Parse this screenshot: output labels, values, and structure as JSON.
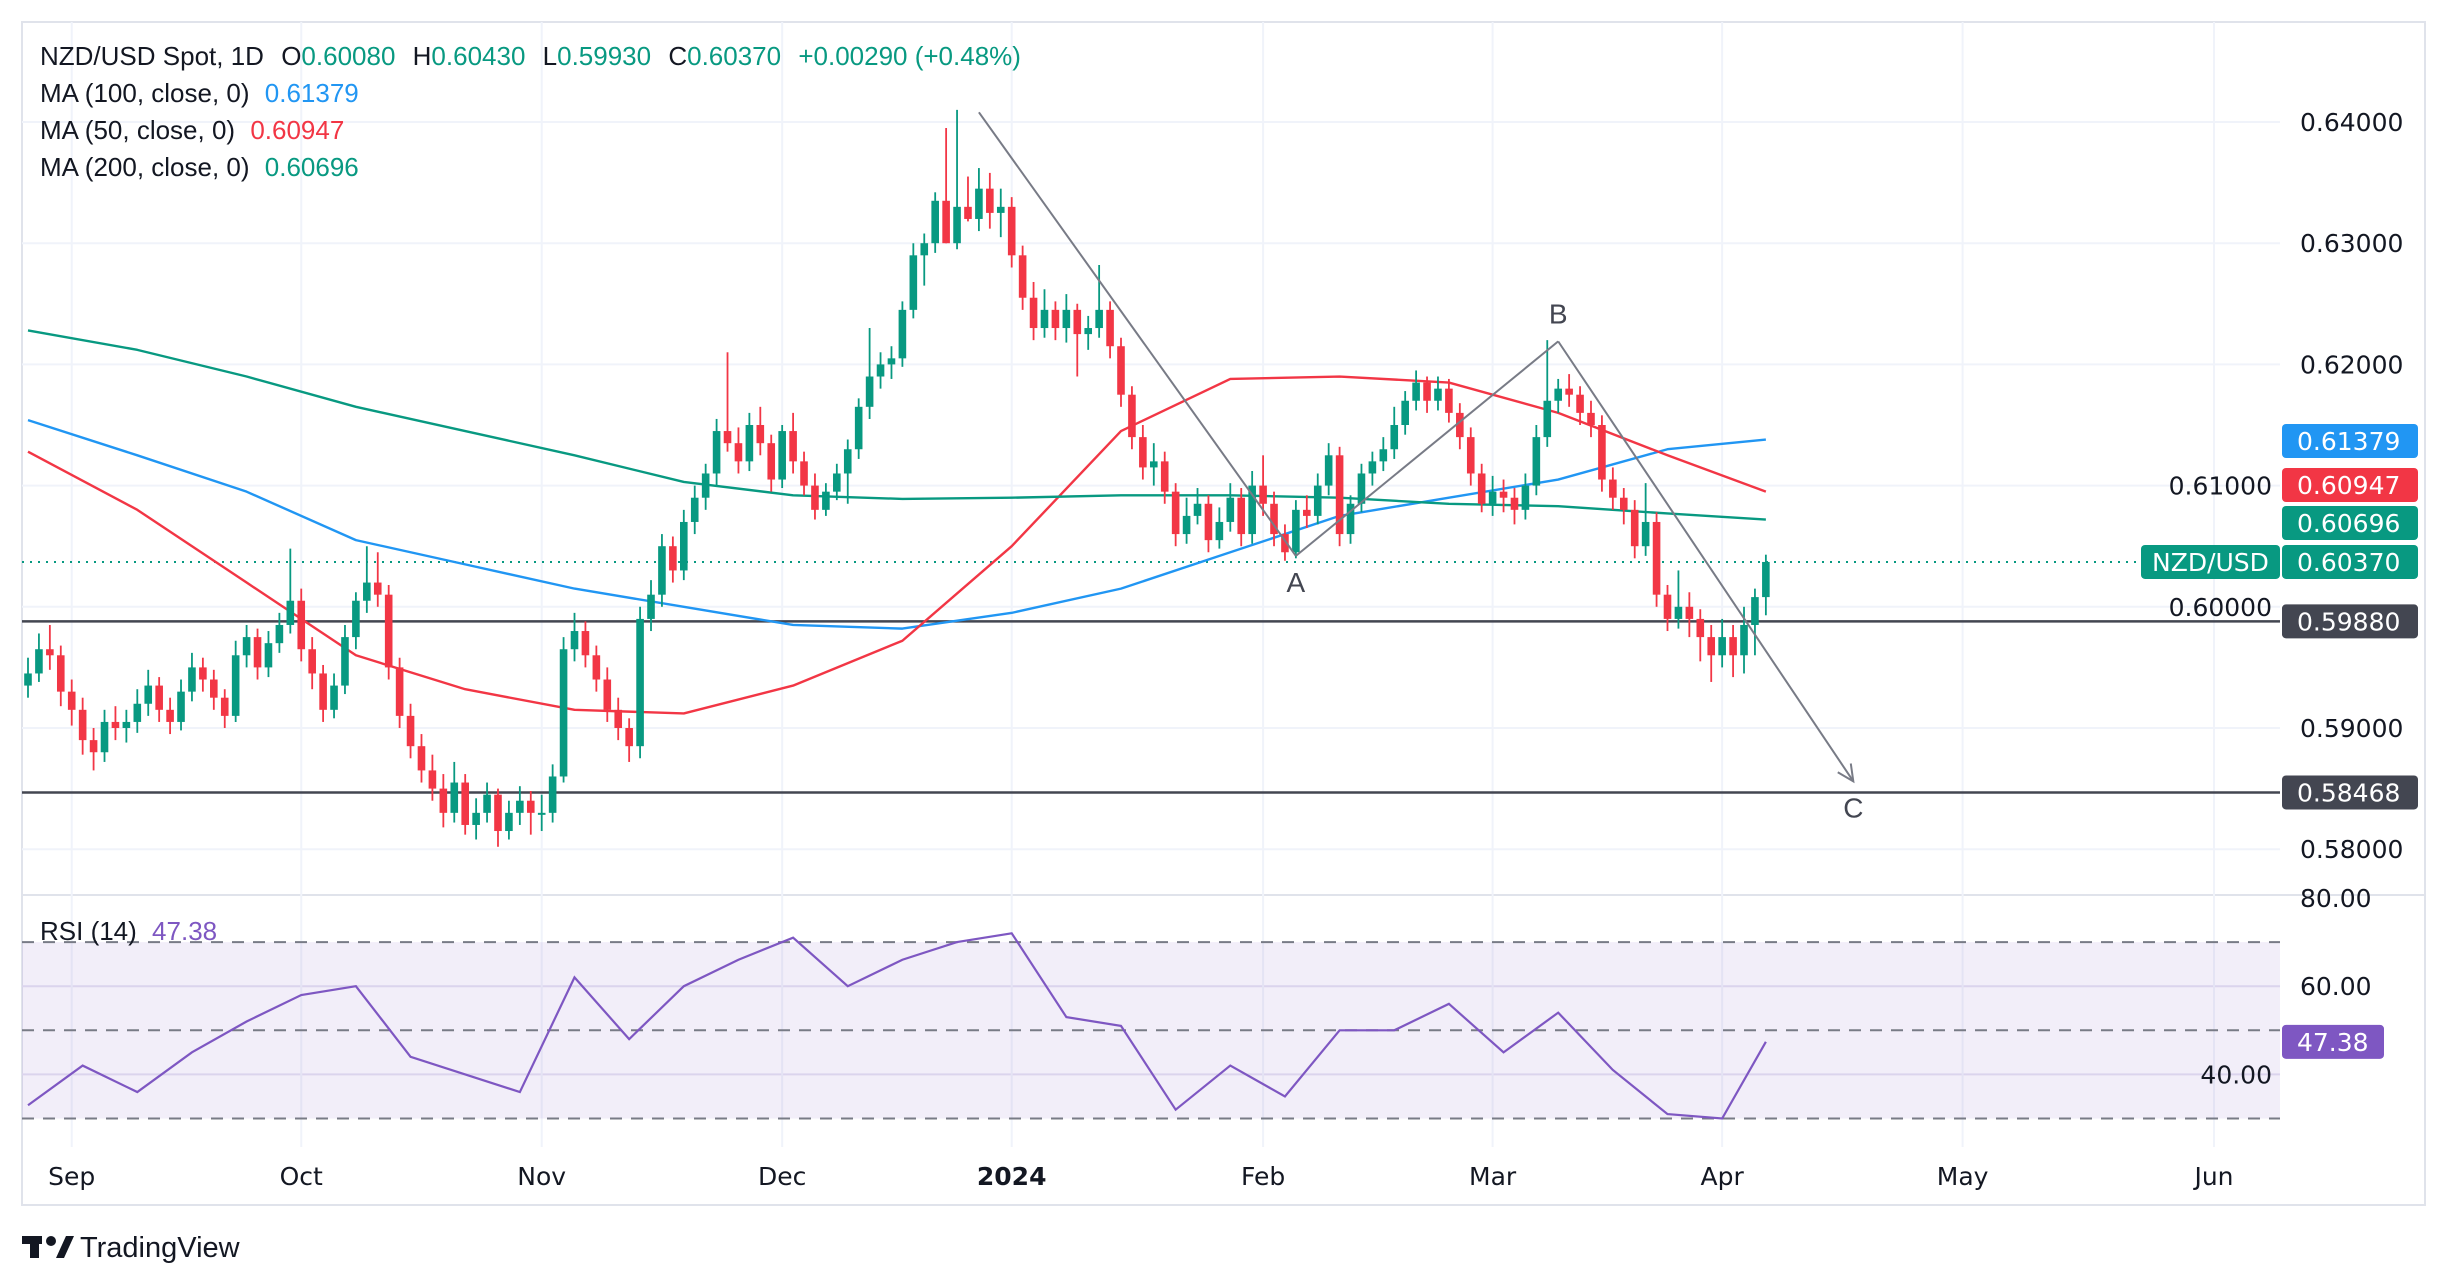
{
  "header": {
    "symbol": "NZD/USD Spot, 1D",
    "o_label": "O",
    "o": "0.60080",
    "h_label": "H",
    "h": "0.60430",
    "l_label": "L",
    "l": "0.59930",
    "c_label": "C",
    "c": "0.60370",
    "change": "+0.00290 (+0.48%)"
  },
  "indicators": [
    {
      "label": "MA (100, close, 0)",
      "value": "0.61379",
      "color": "#2196f3"
    },
    {
      "label": "MA (50, close, 0)",
      "value": "0.60947",
      "color": "#f23645"
    },
    {
      "label": "MA (200, close, 0)",
      "value": "0.60696",
      "color": "#089981"
    }
  ],
  "rsi_legend": {
    "label": "RSI (14)",
    "value": "47.38",
    "color": "#7e57c2"
  },
  "price_tags": {
    "symbol": "NZD/USD",
    "ma100": "0.61379",
    "ma50": "0.60947",
    "ma200": "0.60696",
    "last": "0.60370",
    "level_1": "0.59880",
    "level_2": "0.58468",
    "rsi": "47.38"
  },
  "price_axis": {
    "ticks": [
      "0.64000",
      "0.63000",
      "0.62000",
      "0.61000",
      "0.60000",
      "0.59000",
      "0.58000"
    ]
  },
  "rsi_axis": {
    "ticks": [
      "80.00",
      "60.00",
      "40.00"
    ]
  },
  "time_axis": {
    "ticks": [
      {
        "label": "Sep",
        "date": "2023-09-01",
        "bold": false
      },
      {
        "label": "Oct",
        "date": "2023-10-02",
        "bold": false
      },
      {
        "label": "Nov",
        "date": "2023-11-01",
        "bold": false
      },
      {
        "label": "Dec",
        "date": "2023-12-01",
        "bold": false
      },
      {
        "label": "2024",
        "date": "2024-01-01",
        "bold": true
      },
      {
        "label": "Feb",
        "date": "2024-02-01",
        "bold": false
      },
      {
        "label": "Mar",
        "date": "2024-03-01",
        "bold": false
      },
      {
        "label": "Apr",
        "date": "2024-04-01",
        "bold": false
      },
      {
        "label": "May",
        "date": "2024-05-01",
        "bold": false
      },
      {
        "label": "Jun",
        "date": "2024-06-03",
        "bold": false
      }
    ]
  },
  "brand": "TradingView",
  "colors": {
    "up": "#089981",
    "down": "#f23645",
    "ma100": "#2196f3",
    "ma50": "#f23645",
    "ma200": "#089981",
    "rsi": "#7e57c2",
    "level": "#434651"
  },
  "chart_data": {
    "type": "candlestick",
    "symbol": "NZD/USD Spot",
    "interval": "1D",
    "price_range": [
      0.577,
      0.644
    ],
    "rsi_range": [
      20,
      80
    ],
    "rsi_bands": [
      70,
      50,
      30
    ],
    "grid": true,
    "candles_ohlc": [
      [
        0.5935,
        0.5958,
        0.5925,
        0.5945
      ],
      [
        0.5945,
        0.5978,
        0.5938,
        0.5965
      ],
      [
        0.5965,
        0.5985,
        0.5948,
        0.596
      ],
      [
        0.596,
        0.5968,
        0.5918,
        0.593
      ],
      [
        0.593,
        0.594,
        0.5902,
        0.5915
      ],
      [
        0.5915,
        0.5925,
        0.5878,
        0.589
      ],
      [
        0.589,
        0.59,
        0.5865,
        0.588
      ],
      [
        0.588,
        0.5915,
        0.5872,
        0.5905
      ],
      [
        0.5905,
        0.5918,
        0.589,
        0.59
      ],
      [
        0.59,
        0.5915,
        0.5888,
        0.5905
      ],
      [
        0.5905,
        0.5932,
        0.5896,
        0.592
      ],
      [
        0.592,
        0.5948,
        0.591,
        0.5935
      ],
      [
        0.5935,
        0.5942,
        0.5905,
        0.5915
      ],
      [
        0.5915,
        0.5925,
        0.5895,
        0.5905
      ],
      [
        0.5905,
        0.594,
        0.5898,
        0.593
      ],
      [
        0.593,
        0.5962,
        0.5922,
        0.595
      ],
      [
        0.595,
        0.5958,
        0.593,
        0.594
      ],
      [
        0.594,
        0.5948,
        0.5915,
        0.5925
      ],
      [
        0.5925,
        0.5932,
        0.59,
        0.591
      ],
      [
        0.591,
        0.5972,
        0.5905,
        0.596
      ],
      [
        0.596,
        0.5985,
        0.595,
        0.5975
      ],
      [
        0.5975,
        0.5982,
        0.594,
        0.595
      ],
      [
        0.595,
        0.598,
        0.5942,
        0.597
      ],
      [
        0.597,
        0.5995,
        0.5962,
        0.5985
      ],
      [
        0.5985,
        0.6048,
        0.5978,
        0.6005
      ],
      [
        0.6005,
        0.6015,
        0.5955,
        0.5965
      ],
      [
        0.5965,
        0.5975,
        0.5932,
        0.5945
      ],
      [
        0.5945,
        0.5952,
        0.5905,
        0.5915
      ],
      [
        0.5915,
        0.5945,
        0.5908,
        0.5935
      ],
      [
        0.5935,
        0.5985,
        0.5928,
        0.5975
      ],
      [
        0.5975,
        0.6012,
        0.5965,
        0.6005
      ],
      [
        0.6005,
        0.605,
        0.5995,
        0.602
      ],
      [
        0.602,
        0.6045,
        0.6,
        0.601
      ],
      [
        0.601,
        0.6018,
        0.594,
        0.595
      ],
      [
        0.595,
        0.5958,
        0.59,
        0.591
      ],
      [
        0.591,
        0.592,
        0.5875,
        0.5885
      ],
      [
        0.5885,
        0.5895,
        0.5855,
        0.5865
      ],
      [
        0.5865,
        0.5878,
        0.584,
        0.585
      ],
      [
        0.585,
        0.5862,
        0.5818,
        0.583
      ],
      [
        0.583,
        0.5872,
        0.5822,
        0.5855
      ],
      [
        0.5855,
        0.5862,
        0.5812,
        0.582
      ],
      [
        0.582,
        0.5842,
        0.5808,
        0.583
      ],
      [
        0.583,
        0.5855,
        0.5822,
        0.5845
      ],
      [
        0.5845,
        0.585,
        0.5802,
        0.5815
      ],
      [
        0.5815,
        0.584,
        0.5808,
        0.583
      ],
      [
        0.583,
        0.5852,
        0.582,
        0.584
      ],
      [
        0.584,
        0.5848,
        0.5812,
        0.583
      ],
      [
        0.583,
        0.5845,
        0.5815,
        0.583
      ],
      [
        0.583,
        0.587,
        0.5822,
        0.586
      ],
      [
        0.586,
        0.5975,
        0.5855,
        0.5965
      ],
      [
        0.5965,
        0.5995,
        0.5955,
        0.598
      ],
      [
        0.598,
        0.5988,
        0.595,
        0.596
      ],
      [
        0.596,
        0.5968,
        0.593,
        0.594
      ],
      [
        0.594,
        0.595,
        0.5905,
        0.5915
      ],
      [
        0.5915,
        0.5925,
        0.589,
        0.59
      ],
      [
        0.59,
        0.5908,
        0.5872,
        0.5885
      ],
      [
        0.5885,
        0.6,
        0.5875,
        0.599
      ],
      [
        0.599,
        0.6022,
        0.598,
        0.601
      ],
      [
        0.601,
        0.606,
        0.6,
        0.605
      ],
      [
        0.605,
        0.6058,
        0.602,
        0.603
      ],
      [
        0.603,
        0.608,
        0.6022,
        0.607
      ],
      [
        0.607,
        0.61,
        0.606,
        0.609
      ],
      [
        0.609,
        0.6118,
        0.608,
        0.611
      ],
      [
        0.611,
        0.6155,
        0.61,
        0.6145
      ],
      [
        0.6145,
        0.621,
        0.6128,
        0.6135
      ],
      [
        0.6135,
        0.6148,
        0.611,
        0.612
      ],
      [
        0.612,
        0.616,
        0.6112,
        0.615
      ],
      [
        0.615,
        0.6165,
        0.6125,
        0.6135
      ],
      [
        0.6135,
        0.6142,
        0.6095,
        0.6105
      ],
      [
        0.6105,
        0.615,
        0.6098,
        0.6145
      ],
      [
        0.6145,
        0.616,
        0.611,
        0.612
      ],
      [
        0.612,
        0.6128,
        0.6092,
        0.61
      ],
      [
        0.61,
        0.611,
        0.6072,
        0.608
      ],
      [
        0.608,
        0.6102,
        0.6075,
        0.6095
      ],
      [
        0.6095,
        0.6118,
        0.6088,
        0.611
      ],
      [
        0.611,
        0.6138,
        0.6085,
        0.613
      ],
      [
        0.613,
        0.6172,
        0.6122,
        0.6165
      ],
      [
        0.6165,
        0.623,
        0.6155,
        0.619
      ],
      [
        0.619,
        0.621,
        0.618,
        0.62
      ],
      [
        0.62,
        0.6215,
        0.6188,
        0.6205
      ],
      [
        0.6205,
        0.6252,
        0.6198,
        0.6245
      ],
      [
        0.6245,
        0.63,
        0.6238,
        0.629
      ],
      [
        0.629,
        0.6308,
        0.6265,
        0.63
      ],
      [
        0.63,
        0.6342,
        0.6292,
        0.6335
      ],
      [
        0.6335,
        0.6395,
        0.63,
        0.63
      ],
      [
        0.63,
        0.641,
        0.6295,
        0.633
      ],
      [
        0.633,
        0.6355,
        0.6318,
        0.632
      ],
      [
        0.632,
        0.6362,
        0.631,
        0.6345
      ],
      [
        0.6345,
        0.6358,
        0.6312,
        0.6325
      ],
      [
        0.6325,
        0.6345,
        0.6305,
        0.633
      ],
      [
        0.633,
        0.6338,
        0.628,
        0.629
      ],
      [
        0.629,
        0.6298,
        0.6245,
        0.6255
      ],
      [
        0.6255,
        0.6268,
        0.622,
        0.623
      ],
      [
        0.623,
        0.6262,
        0.6222,
        0.6245
      ],
      [
        0.6245,
        0.6252,
        0.622,
        0.623
      ],
      [
        0.623,
        0.6258,
        0.6218,
        0.6245
      ],
      [
        0.6245,
        0.625,
        0.619,
        0.6225
      ],
      [
        0.6225,
        0.624,
        0.6212,
        0.623
      ],
      [
        0.623,
        0.6282,
        0.6222,
        0.6245
      ],
      [
        0.6245,
        0.6252,
        0.6205,
        0.6215
      ],
      [
        0.6215,
        0.6222,
        0.6165,
        0.6175
      ],
      [
        0.6175,
        0.6182,
        0.613,
        0.614
      ],
      [
        0.614,
        0.615,
        0.6105,
        0.6115
      ],
      [
        0.6115,
        0.6135,
        0.61,
        0.612
      ],
      [
        0.612,
        0.6128,
        0.6085,
        0.6095
      ],
      [
        0.6095,
        0.6102,
        0.605,
        0.606
      ],
      [
        0.606,
        0.609,
        0.6052,
        0.6075
      ],
      [
        0.6075,
        0.6098,
        0.6068,
        0.6085
      ],
      [
        0.6085,
        0.6092,
        0.6045,
        0.6055
      ],
      [
        0.6055,
        0.6082,
        0.6048,
        0.607
      ],
      [
        0.607,
        0.6102,
        0.6062,
        0.609
      ],
      [
        0.609,
        0.6098,
        0.605,
        0.606
      ],
      [
        0.606,
        0.6112,
        0.6052,
        0.61
      ],
      [
        0.61,
        0.6125,
        0.6075,
        0.6085
      ],
      [
        0.6085,
        0.6095,
        0.605,
        0.606
      ],
      [
        0.606,
        0.6068,
        0.6038,
        0.6045
      ],
      [
        0.6045,
        0.6088,
        0.604,
        0.608
      ],
      [
        0.608,
        0.6092,
        0.6065,
        0.6075
      ],
      [
        0.6075,
        0.611,
        0.6068,
        0.61
      ],
      [
        0.61,
        0.6135,
        0.6092,
        0.6125
      ],
      [
        0.6125,
        0.6132,
        0.605,
        0.606
      ],
      [
        0.606,
        0.6092,
        0.6052,
        0.6085
      ],
      [
        0.6085,
        0.6118,
        0.6078,
        0.611
      ],
      [
        0.611,
        0.6128,
        0.61,
        0.612
      ],
      [
        0.612,
        0.614,
        0.6112,
        0.613
      ],
      [
        0.613,
        0.6165,
        0.6122,
        0.615
      ],
      [
        0.615,
        0.6178,
        0.6142,
        0.617
      ],
      [
        0.617,
        0.6195,
        0.6162,
        0.6185
      ],
      [
        0.6185,
        0.619,
        0.616,
        0.617
      ],
      [
        0.617,
        0.619,
        0.6162,
        0.618
      ],
      [
        0.618,
        0.6188,
        0.6152,
        0.616
      ],
      [
        0.616,
        0.6168,
        0.613,
        0.614
      ],
      [
        0.614,
        0.6148,
        0.61,
        0.611
      ],
      [
        0.611,
        0.6118,
        0.6078,
        0.6085
      ],
      [
        0.6085,
        0.6108,
        0.6075,
        0.6095
      ],
      [
        0.6095,
        0.6105,
        0.6078,
        0.609
      ],
      [
        0.609,
        0.6098,
        0.6068,
        0.608
      ],
      [
        0.608,
        0.611,
        0.6072,
        0.61
      ],
      [
        0.61,
        0.615,
        0.6092,
        0.614
      ],
      [
        0.614,
        0.622,
        0.6132,
        0.617
      ],
      [
        0.617,
        0.6188,
        0.616,
        0.618
      ],
      [
        0.618,
        0.6192,
        0.6165,
        0.6175
      ],
      [
        0.6175,
        0.6182,
        0.615,
        0.616
      ],
      [
        0.616,
        0.617,
        0.614,
        0.615
      ],
      [
        0.615,
        0.6158,
        0.6095,
        0.6105
      ],
      [
        0.6105,
        0.6115,
        0.608,
        0.609
      ],
      [
        0.609,
        0.6098,
        0.6068,
        0.608
      ],
      [
        0.608,
        0.6088,
        0.604,
        0.605
      ],
      [
        0.605,
        0.6102,
        0.6042,
        0.607
      ],
      [
        0.607,
        0.6078,
        0.6,
        0.601
      ],
      [
        0.601,
        0.6018,
        0.598,
        0.599
      ],
      [
        0.599,
        0.603,
        0.5982,
        0.6
      ],
      [
        0.6,
        0.6012,
        0.5975,
        0.599
      ],
      [
        0.599,
        0.5998,
        0.5955,
        0.5975
      ],
      [
        0.5975,
        0.5985,
        0.5938,
        0.596
      ],
      [
        0.596,
        0.599,
        0.595,
        0.5975
      ],
      [
        0.5975,
        0.5985,
        0.5942,
        0.596
      ],
      [
        0.596,
        0.6,
        0.5945,
        0.5985
      ],
      [
        0.5985,
        0.6015,
        0.596,
        0.6008
      ],
      [
        0.6008,
        0.6043,
        0.5993,
        0.6037
      ]
    ],
    "moving_averages": [
      {
        "name": "MA (100, close, 0)",
        "color": "#2196f3",
        "values": [
          0.6154,
          0.6125,
          0.6095,
          0.6055,
          0.6035,
          0.6015,
          0.6,
          0.5985,
          0.5982,
          0.5995,
          0.6015,
          0.6045,
          0.6075,
          0.609,
          0.6105,
          0.613,
          0.6138
        ]
      },
      {
        "name": "MA (50, close, 0)",
        "color": "#f23645",
        "values": [
          0.6128,
          0.608,
          0.602,
          0.596,
          0.5932,
          0.5915,
          0.5912,
          0.5935,
          0.5972,
          0.605,
          0.6145,
          0.6188,
          0.619,
          0.6185,
          0.616,
          0.6125,
          0.6095
        ]
      },
      {
        "name": "MA (200, close, 0)",
        "color": "#089981",
        "values": [
          0.6228,
          0.6212,
          0.619,
          0.6165,
          0.6145,
          0.6125,
          0.6103,
          0.6092,
          0.6089,
          0.609,
          0.6092,
          0.6092,
          0.609,
          0.6085,
          0.6083,
          0.6077,
          0.6072
        ]
      }
    ],
    "rsi": {
      "name": "RSI (14)",
      "values": [
        33,
        42,
        36,
        45,
        52,
        58,
        60,
        44,
        40,
        36,
        62,
        48,
        60,
        66,
        71,
        60,
        66,
        70,
        72,
        53,
        51,
        32,
        42,
        35,
        50,
        50,
        56,
        45,
        54,
        41,
        31,
        30,
        47.38
      ]
    },
    "horizontal_levels": [
      0.5988,
      0.58468
    ],
    "last_price": 0.6037,
    "wave_points": [
      {
        "label": "",
        "date": "2023-12-27",
        "price": 0.6408
      },
      {
        "label": "A",
        "date": "2024-02-06",
        "price": 0.6042
      },
      {
        "label": "B",
        "date": "2024-03-11",
        "price": 0.6219
      },
      {
        "label": "C",
        "date": "2024-04-17",
        "price": 0.5856
      }
    ]
  }
}
